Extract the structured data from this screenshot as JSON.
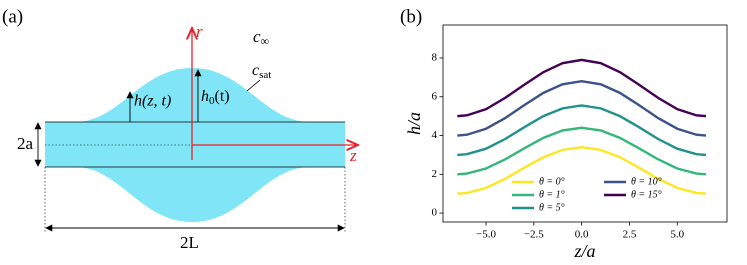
{
  "figure_a": {
    "label": "(a)",
    "r_axis": "r",
    "z_axis": "z",
    "c_inf": {
      "base": "c",
      "sub": "∞"
    },
    "c_sat": {
      "base": "c",
      "sub": "sat"
    },
    "h_local": "h(z, t)",
    "h_max": {
      "base": "h",
      "sub": "0",
      "rest": "(t)"
    },
    "thickness": "2a",
    "length": "2L"
  },
  "chart_data": {
    "type": "line",
    "label": "(b)",
    "x_label": "z/a",
    "y_label": "h/a",
    "x": [
      -6.5,
      -6,
      -5,
      -4,
      -3,
      -2,
      -1,
      0,
      1,
      2,
      3,
      4,
      5,
      6,
      6.5
    ],
    "series": [
      {
        "name": "θ = 0°",
        "color": "#fde725",
        "values": [
          1,
          1.04,
          1.3,
          1.77,
          2.34,
          2.88,
          3.26,
          3.4,
          3.26,
          2.88,
          2.34,
          1.77,
          1.3,
          1.04,
          1
        ]
      },
      {
        "name": "θ = 1°",
        "color": "#35b779",
        "values": [
          2,
          2.04,
          2.3,
          2.77,
          3.34,
          3.88,
          4.26,
          4.4,
          4.26,
          3.88,
          3.34,
          2.77,
          2.3,
          2.04,
          2
        ]
      },
      {
        "name": "θ = 5°",
        "color": "#21918c",
        "values": [
          3,
          3.04,
          3.32,
          3.82,
          4.43,
          5.0,
          5.4,
          5.55,
          5.4,
          5.0,
          4.43,
          3.82,
          3.32,
          3.04,
          3
        ]
      },
      {
        "name": "θ = 10°",
        "color": "#3b528b",
        "values": [
          4,
          4.04,
          4.35,
          4.9,
          5.57,
          6.2,
          6.64,
          6.8,
          6.64,
          6.2,
          5.57,
          4.9,
          4.35,
          4.04,
          4
        ]
      },
      {
        "name": "θ = 15°",
        "color": "#440154",
        "values": [
          5,
          5.04,
          5.36,
          5.94,
          6.62,
          7.27,
          7.73,
          7.9,
          7.73,
          7.27,
          6.62,
          5.94,
          5.36,
          5.04,
          5
        ]
      }
    ],
    "xlim": [
      -7.25,
      7.6
    ],
    "ylim": [
      -0.46,
      9.7
    ],
    "xticks": [
      {
        "value": -5,
        "label": "−5.0"
      },
      {
        "value": -2.5,
        "label": "−2.5"
      },
      {
        "value": 0,
        "label": "0.0"
      },
      {
        "value": 2.5,
        "label": "2.5"
      },
      {
        "value": 5,
        "label": "5.0"
      }
    ],
    "yticks": [
      0,
      2,
      4,
      6,
      8
    ],
    "legend": "lower center"
  }
}
